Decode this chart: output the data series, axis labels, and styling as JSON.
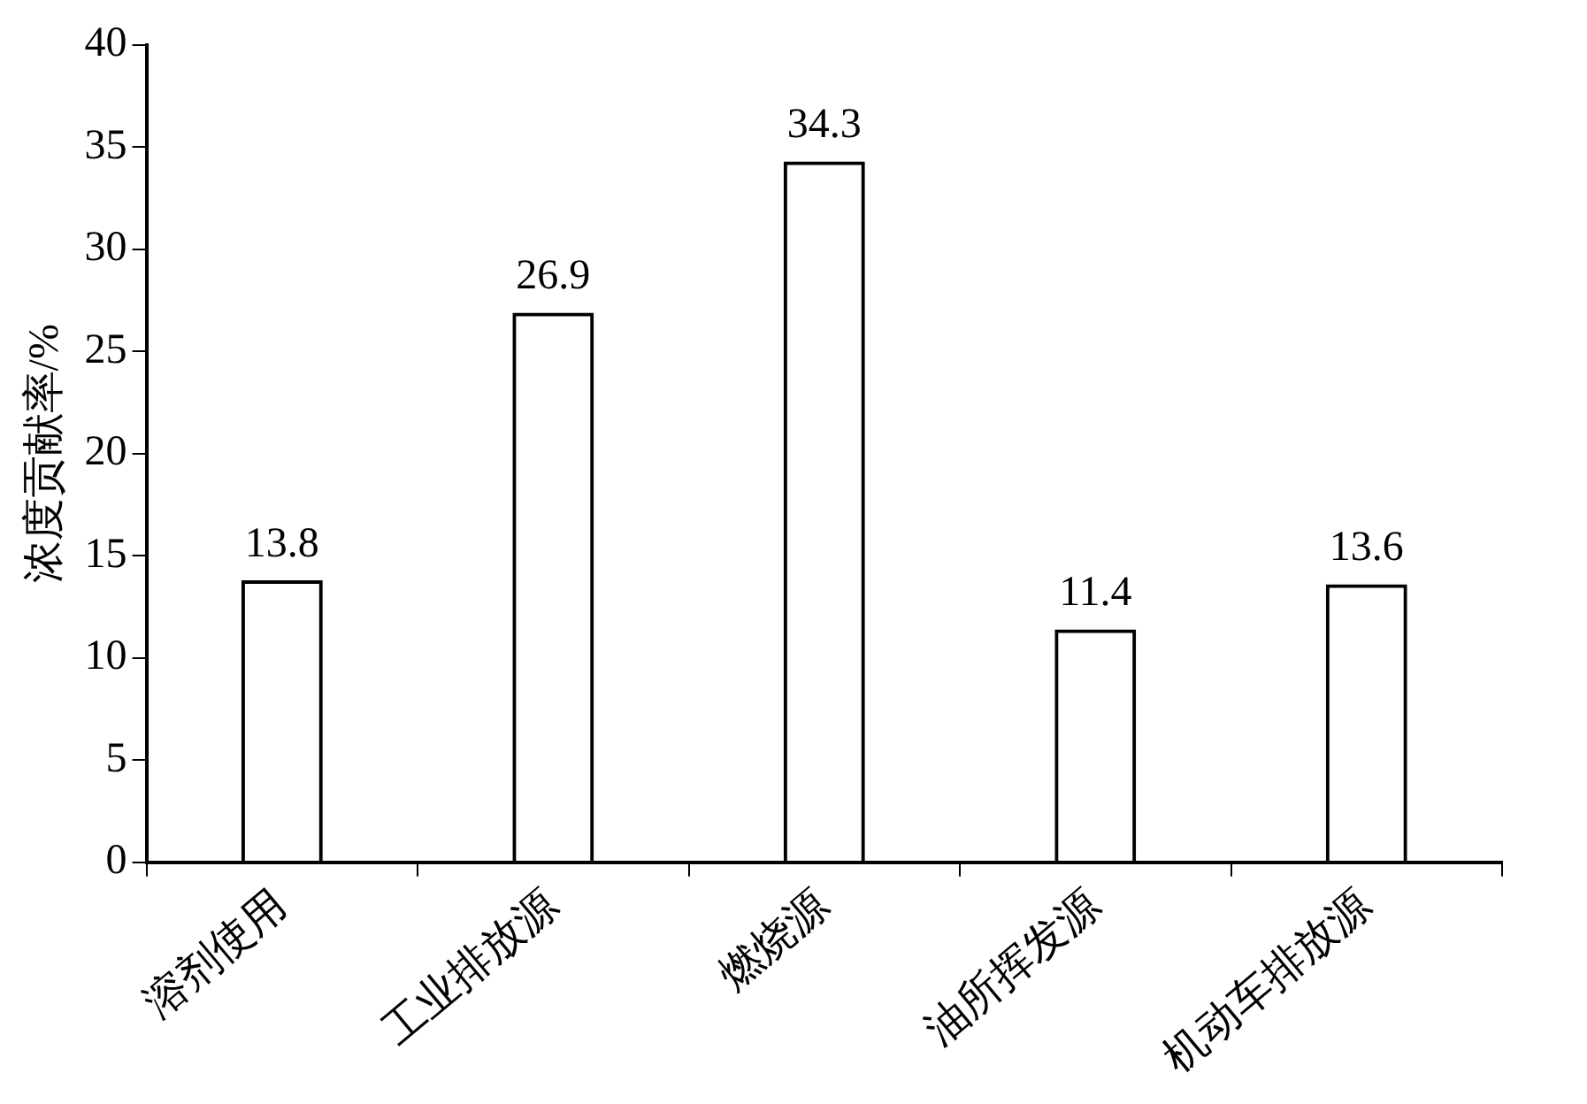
{
  "chart_data": {
    "type": "bar",
    "ylabel": "浓度贡献率/%",
    "categories": [
      "溶剂使用",
      "工业排放源",
      "燃烧源",
      "油所挥发源",
      "机动车排放源"
    ],
    "values": [
      13.8,
      26.9,
      34.3,
      11.4,
      13.6
    ],
    "color": "#000000",
    "ylim": [
      0,
      40
    ],
    "yticks": [
      0,
      5,
      10,
      15,
      20,
      25,
      30,
      35,
      40
    ],
    "data_labels": true,
    "grid": false,
    "legend": false
  }
}
